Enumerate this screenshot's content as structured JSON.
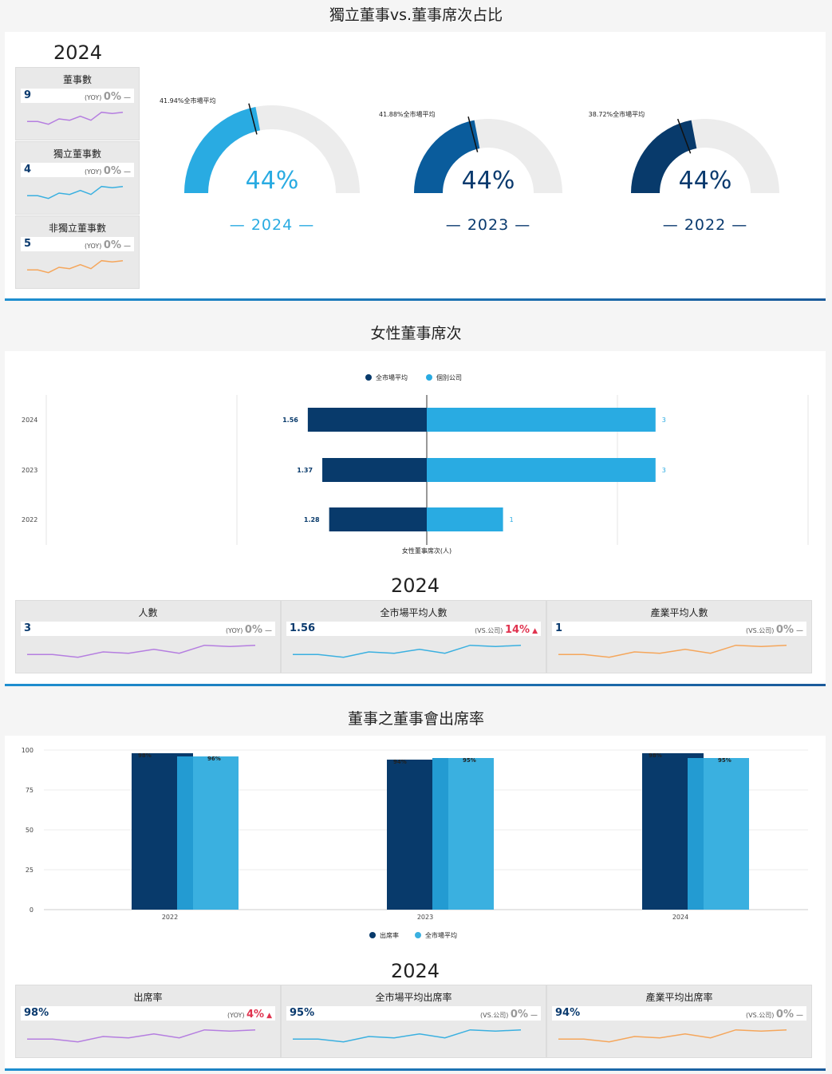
{
  "section1": {
    "title": "獨立董事vs.董事席次占比",
    "year": "2024",
    "cards": [
      {
        "label": "董事數",
        "value": "9",
        "yoy_label": "(YOY)",
        "pct": "0%",
        "trend": "—",
        "color": "#b57ee0"
      },
      {
        "label": "獨立董事數",
        "value": "4",
        "yoy_label": "(YOY)",
        "pct": "0%",
        "trend": "—",
        "color": "#3ab0e0"
      },
      {
        "label": "非獨立董事數",
        "value": "5",
        "yoy_label": "(YOY)",
        "pct": "0%",
        "trend": "—",
        "color": "#f5a65b"
      }
    ],
    "gauges": [
      {
        "year_label": "— 2024 —",
        "value_label": "44%",
        "value": 44,
        "market_label": "41.94%全市場平均",
        "market": 41.94,
        "color": "#29abe2",
        "text_color": "#29abe2"
      },
      {
        "year_label": "— 2023 —",
        "value_label": "44%",
        "value": 44,
        "market_label": "41.88%全市場平均",
        "market": 41.88,
        "color": "#0a5c9c",
        "text_color": "#0a3a6e"
      },
      {
        "year_label": "— 2022 —",
        "value_label": "44%",
        "value": 44,
        "market_label": "38.72%全市場平均",
        "market": 38.72,
        "color": "#083a6b",
        "text_color": "#0a3a6e"
      }
    ]
  },
  "section2": {
    "title": "女性董事席次",
    "year": "2024",
    "cards": [
      {
        "label": "人數",
        "value": "3",
        "yoy_label": "(YOY)",
        "pct": "0%",
        "trend": "—",
        "color": "#b57ee0"
      },
      {
        "label": "全市場平均人數",
        "value": "1.56",
        "yoy_label": "(VS.公司)",
        "pct": "14%",
        "trend": "▲",
        "color": "#3ab0e0"
      },
      {
        "label": "產業平均人數",
        "value": "1",
        "yoy_label": "(VS.公司)",
        "pct": "0%",
        "trend": "—",
        "color": "#f5a65b"
      }
    ]
  },
  "section3": {
    "title": "董事之董事會出席率",
    "year": "2024",
    "cards": [
      {
        "label": "出席率",
        "value": "98%",
        "yoy_label": "(YOY)",
        "pct": "4%",
        "trend": "▲",
        "color": "#b57ee0"
      },
      {
        "label": "全市場平均出席率",
        "value": "95%",
        "yoy_label": "(VS.公司)",
        "pct": "0%",
        "trend": "—",
        "color": "#3ab0e0"
      },
      {
        "label": "產業平均出席率",
        "value": "94%",
        "yoy_label": "(VS.公司)",
        "pct": "0%",
        "trend": "—",
        "color": "#f5a65b"
      }
    ]
  },
  "chart_data": [
    {
      "type": "gauge",
      "title": "獨立董事vs.董事席次占比",
      "categories": [
        "2024",
        "2023",
        "2022"
      ],
      "series": [
        {
          "name": "個別公司",
          "values": [
            44,
            44,
            44
          ]
        },
        {
          "name": "全市場平均",
          "values": [
            41.94,
            41.88,
            38.72
          ]
        }
      ],
      "ylim": [
        0,
        100
      ]
    },
    {
      "type": "bar",
      "orientation": "horizontal-diverging",
      "title": "女性董事席次",
      "categories": [
        "2024",
        "2023",
        "2022"
      ],
      "xlabel": "女性董事席次(人)",
      "legend": [
        "全市場平均",
        "個別公司"
      ],
      "legend_position": "top",
      "series": [
        {
          "name": "全市場平均",
          "values": [
            1.56,
            1.37,
            1.28
          ],
          "labels": [
            "1.56",
            "1.37",
            "1.28"
          ],
          "color": "#083a6b"
        },
        {
          "name": "個別公司",
          "values": [
            3,
            3,
            1
          ],
          "labels": [
            "3",
            "3",
            "1"
          ],
          "color": "#29abe2"
        }
      ],
      "xlim": [
        -3.5,
        5
      ]
    },
    {
      "type": "bar",
      "title": "董事之董事會出席率",
      "categories": [
        "2022",
        "2023",
        "2024"
      ],
      "yticks": [
        "0",
        "25",
        "50",
        "75",
        "100"
      ],
      "ylim": [
        0,
        100
      ],
      "legend": [
        "出席率",
        "全市場平均"
      ],
      "legend_position": "bottom",
      "series": [
        {
          "name": "出席率",
          "values": [
            98,
            94,
            98
          ],
          "labels": [
            "98%",
            "94%",
            "98%"
          ],
          "color": "#083a6b"
        },
        {
          "name": "全市場平均",
          "values": [
            96,
            95,
            95
          ],
          "labels": [
            "96%",
            "95%",
            "95%"
          ],
          "color": "#3ab0e0"
        }
      ],
      "grid": true
    }
  ],
  "sparkline": [
    2,
    2,
    1,
    3,
    2.5,
    4,
    2.5,
    5.5,
    5,
    5.5
  ]
}
